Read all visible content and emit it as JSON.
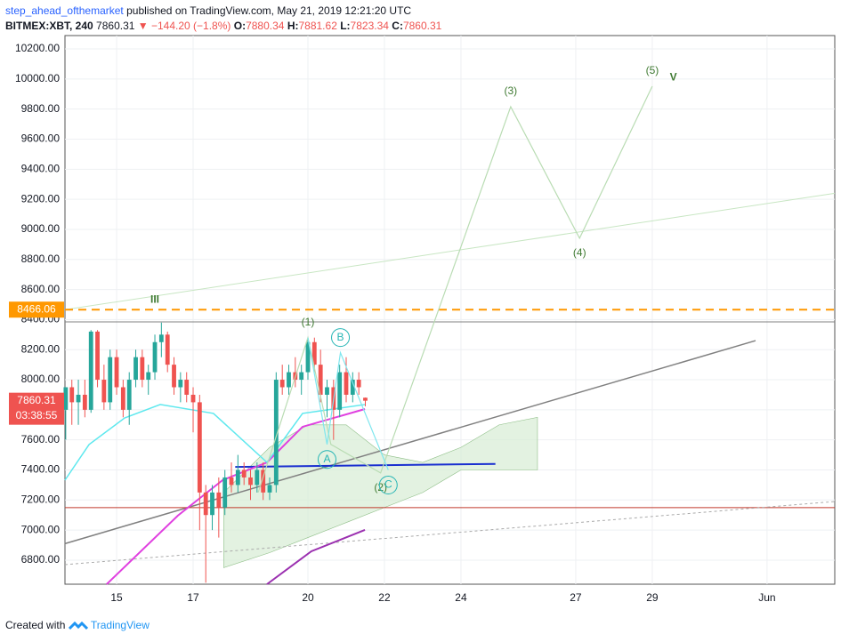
{
  "header": {
    "author": "step_ahead_ofthemarket",
    "published": "published on TradingView.com, May 21, 2019 12:21:20 UTC",
    "symbol": "BITMEX:XBT, 240",
    "change": "▼ −144.20 (−1.8%)",
    "ohlc_labels": [
      "O:",
      "H:",
      "L:",
      "C:"
    ]
  },
  "footer": {
    "created_with": "Created with",
    "brand": "TradingView"
  },
  "chart_data": {
    "type": "candlestick",
    "up_color": "#26a69a",
    "down_color": "#ef5350",
    "x": [
      13.67,
      13.83,
      14,
      14.17,
      14.33,
      14.5,
      14.67,
      14.83,
      15,
      15.17,
      15.33,
      15.5,
      15.67,
      15.83,
      16,
      16.17,
      16.33,
      16.5,
      16.67,
      16.83,
      17,
      17.17,
      17.33,
      17.5,
      17.67,
      17.83,
      18,
      18.17,
      18.33,
      18.5,
      18.67,
      18.83,
      19,
      19.17,
      19.33,
      19.5,
      19.67,
      19.83,
      20,
      20.17,
      20.33,
      20.5,
      20.67,
      20.83,
      21,
      21.17,
      21.33,
      21.5
    ],
    "open": [
      7800,
      7950,
      7850,
      7900,
      7800,
      8320,
      8000,
      7850,
      8150,
      7950,
      7800,
      8000,
      8150,
      8000,
      8050,
      8250,
      8300,
      8100,
      7950,
      8000,
      7900,
      7850,
      7250,
      7100,
      7250,
      7150,
      7350,
      7300,
      7400,
      7350,
      7300,
      7400,
      7250,
      7300,
      8000,
      7950,
      8050,
      8000,
      8050,
      8250,
      8100,
      7900,
      7950,
      7800,
      8050,
      7900,
      8000,
      7880.34
    ],
    "high": [
      7950,
      8000,
      8000,
      8000,
      8330,
      8330,
      8100,
      8200,
      8200,
      8000,
      8050,
      8200,
      8200,
      8100,
      8300,
      8380,
      8320,
      8150,
      8050,
      8050,
      7950,
      7900,
      7300,
      7300,
      7350,
      7400,
      7450,
      7500,
      7450,
      7400,
      7450,
      7450,
      7350,
      8050,
      8100,
      8100,
      8150,
      8100,
      8280,
      8280,
      8200,
      8000,
      8000,
      8100,
      8150,
      8050,
      8050,
      7881.62
    ],
    "low": [
      7600,
      7700,
      7700,
      7750,
      7780,
      7950,
      7800,
      7800,
      7900,
      7750,
      7700,
      7950,
      7950,
      7900,
      8000,
      8150,
      8050,
      7900,
      7850,
      7850,
      7650,
      7000,
      6650,
      7000,
      6950,
      7100,
      7250,
      7250,
      7300,
      7200,
      7250,
      7200,
      7200,
      7250,
      7900,
      7900,
      7950,
      7900,
      8000,
      8050,
      7850,
      7750,
      7600,
      7750,
      7850,
      7850,
      7900,
      7823.34
    ],
    "close": [
      7950,
      7850,
      7900,
      7800,
      8320,
      8000,
      7850,
      8150,
      7950,
      7800,
      8000,
      8150,
      8000,
      8050,
      8250,
      8300,
      8100,
      7950,
      8000,
      7900,
      7850,
      7250,
      7100,
      7250,
      7150,
      7350,
      7300,
      7400,
      7350,
      7300,
      7400,
      7250,
      7300,
      8000,
      7950,
      8050,
      8000,
      8050,
      8250,
      8100,
      7900,
      7950,
      7800,
      8050,
      7900,
      8000,
      7950,
      7860.31
    ],
    "countdown": "03:38:55",
    "xlim": [
      13.65,
      33.77
    ],
    "ylim": [
      6640,
      10289
    ],
    "xticks": [
      15,
      17,
      20,
      22,
      24,
      27,
      29,
      {
        "value": 32,
        "label": "Jun"
      }
    ],
    "yticks": [
      {
        "value": 6800,
        "label": "6800.00"
      },
      {
        "value": 7000,
        "label": "7000.00"
      },
      {
        "value": 7200,
        "label": "7200.00"
      },
      {
        "value": 7400,
        "label": "7400.00"
      },
      {
        "value": 7600,
        "label": "7600.00"
      },
      {
        "value": 7800,
        "label": "7800.00"
      },
      {
        "value": 8000,
        "label": "8000.00"
      },
      {
        "value": 8200,
        "label": "8200.00"
      },
      {
        "value": 8400,
        "label": "8400.00"
      },
      {
        "value": 8600,
        "label": "8600.00"
      },
      {
        "value": 8800,
        "label": "8800.00"
      },
      {
        "value": 9000,
        "label": "9000.00"
      },
      {
        "value": 9200,
        "label": "9200.00"
      },
      {
        "value": 9400,
        "label": "9400.00"
      },
      {
        "value": 9600,
        "label": "9600.00"
      },
      {
        "value": 9800,
        "label": "9800.00"
      },
      {
        "value": 10000,
        "label": "10000.00"
      },
      {
        "value": 10200,
        "label": "10200.00"
      }
    ],
    "grid": true,
    "price_level": {
      "value": 8466.06,
      "color": "#ff9800"
    },
    "cloud": {
      "color": "#d7ecd4",
      "x": [
        17.8,
        19,
        20,
        21,
        22,
        23,
        24,
        25,
        26
      ],
      "upper": [
        7250,
        7550,
        7700,
        7700,
        7500,
        7450,
        7550,
        7700,
        7750
      ],
      "lower": [
        6750,
        6850,
        6950,
        7050,
        7150,
        7250,
        7400,
        7400,
        7400
      ]
    },
    "overlays": [
      {
        "color": "#808080",
        "width": 1.5,
        "x": [
          13.65,
          31.7
        ],
        "y": [
          6910,
          8260
        ]
      },
      {
        "color": "#808080",
        "width": 1,
        "x": [
          13.65,
          33.77
        ],
        "y": [
          8385,
          8385
        ]
      },
      {
        "color": "#c0392b",
        "width": 1,
        "x": [
          13.65,
          33.77
        ],
        "y": [
          7149,
          7149
        ]
      },
      {
        "color": "#aaaaaa",
        "width": 1,
        "dash": true,
        "x": [
          13.65,
          33.77
        ],
        "y": [
          6770,
          7190
        ]
      },
      {
        "color": "#1a2fd0",
        "width": 2,
        "x": [
          18.1,
          24.9
        ],
        "y": [
          7420,
          7440
        ]
      },
      {
        "color": "#c8e6c3",
        "width": 1,
        "x": [
          13.65,
          33.77
        ],
        "y": [
          8466,
          9240
        ]
      },
      {
        "color": "#e040e0",
        "width": 2,
        "x": [
          14.74,
          16.6,
          17.77,
          18.93,
          19.86,
          21.49
        ],
        "y": [
          6640,
          7096,
          7332,
          7450,
          7687,
          7805
        ]
      },
      {
        "color": "#5ee8ee",
        "width": 1.5,
        "x": [
          13.65,
          14.28,
          15.21,
          16.14,
          17.53,
          18.93,
          19.86,
          21.49
        ],
        "y": [
          7332,
          7569,
          7746,
          7835,
          7776,
          7450,
          7776,
          7835
        ]
      },
      {
        "color": "#9b30b0",
        "width": 2,
        "x": [
          18.93,
          20.09,
          21.49
        ],
        "y": [
          6640,
          6859,
          7001
        ]
      }
    ],
    "waves": [
      {
        "color": "#3f7a32",
        "line_color": "#b9dcb3",
        "x": [
          18.7,
          20,
          20.6,
          21.9,
          25.3,
          27.1,
          29
        ],
        "y": [
          7250,
          8280,
          7570,
          7380,
          9816,
          8941,
          9952
        ],
        "labels": [
          null,
          "(1)",
          null,
          "(2)",
          "(3)",
          "(4)",
          "(5)"
        ]
      },
      {
        "color": "#26b5b5",
        "line_color": "#7fe6ee",
        "x": [
          20,
          20.5,
          20.85,
          22.1
        ],
        "y": [
          8280,
          7570,
          8180,
          7400
        ],
        "labels": [
          null,
          "A",
          "B",
          "C"
        ]
      }
    ],
    "annotations": [
      {
        "text": "III",
        "x": 16,
        "y": 8530,
        "color": "#3f7a32"
      },
      {
        "text": "V",
        "x": 29.55,
        "y": 10010,
        "color": "#3f7a32"
      }
    ]
  }
}
